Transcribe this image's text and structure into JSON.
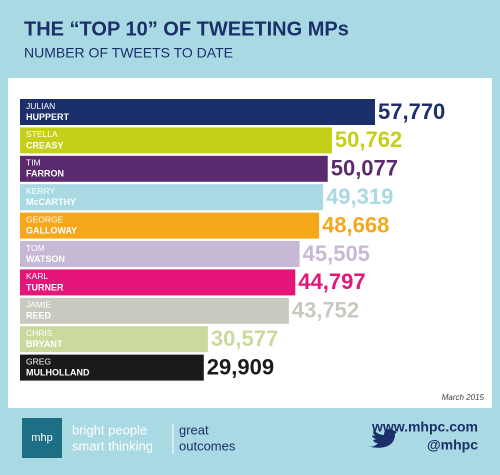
{
  "chart_data": {
    "type": "hbar",
    "title": "THE “TOP 10” OF TWEETING MPs",
    "subtitle": "NUMBER OF TWEETS TO DATE",
    "labels": [
      {
        "first": "JULIAN",
        "last": "HUPPERT"
      },
      {
        "first": "STELLA",
        "last": "CREASY"
      },
      {
        "first": "TIM",
        "last": "FARRON"
      },
      {
        "first": "KERRY",
        "last": "McCARTHY"
      },
      {
        "first": "GEORGE",
        "last": "GALLOWAY"
      },
      {
        "first": "TOM",
        "last": "WATSON"
      },
      {
        "first": "KARL",
        "last": "TURNER"
      },
      {
        "first": "JAMIE",
        "last": "REED"
      },
      {
        "first": "CHRIS",
        "last": "BRYANT"
      },
      {
        "first": "GREG",
        "last": "MULHOLLAND"
      }
    ],
    "values": [
      57770,
      50762,
      50077,
      49319,
      48668,
      45505,
      44797,
      43752,
      30577,
      29909
    ],
    "value_labels": [
      "57,770",
      "50,762",
      "50,077",
      "49,319",
      "48,668",
      "45,505",
      "44,797",
      "43,752",
      "30,577",
      "29,909"
    ],
    "colors": [
      "#1b2f6b",
      "#c5cf1a",
      "#5b2a6e",
      "#a9d9e3",
      "#f5a81c",
      "#c7b9d6",
      "#e5157a",
      "#cac9c0",
      "#c9da9c",
      "#1a1a1a"
    ],
    "note": "March 2015"
  },
  "footer": {
    "logo": "mhp",
    "tagline": [
      "bright people",
      "smart thinking"
    ],
    "tagline2": [
      "great",
      "outcomes"
    ],
    "url": "www.mhpc.com",
    "twitter": "@mhpc"
  }
}
